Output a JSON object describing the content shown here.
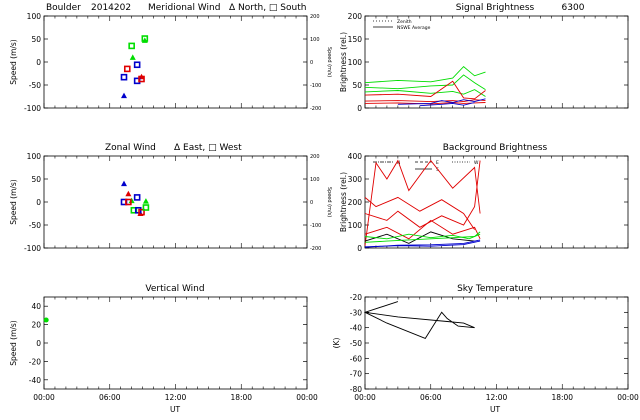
{
  "colors": {
    "red": "#e00000",
    "green": "#00dd00",
    "blue": "#0000cc",
    "black": "#000000"
  },
  "chart_data": [
    {
      "id": "meridional",
      "type": "scatter",
      "title_left": "Boulder",
      "title_code": "2014202",
      "title": "Meridional Wind",
      "title_legend": "Δ North, □ South",
      "ylabel": "Speed (m/s)",
      "ylabel_right": "Speed (m/s)",
      "xlim": [
        0,
        24
      ],
      "ylim": [
        -100,
        100
      ],
      "yticks": [
        -100,
        -50,
        0,
        50,
        100
      ],
      "yticks_right": [
        -200,
        -100,
        0,
        100,
        200
      ],
      "ylim_right": [
        -200,
        200
      ],
      "series": [
        {
          "name": "North",
          "marker": "triangle",
          "points": [
            {
              "x": 7.3,
              "y": -73,
              "color": "blue"
            },
            {
              "x": 8.1,
              "y": 10,
              "color": "green"
            },
            {
              "x": 8.9,
              "y": -32,
              "color": "red"
            },
            {
              "x": 9.2,
              "y": 47,
              "color": "green"
            }
          ]
        },
        {
          "name": "South",
          "marker": "square",
          "points": [
            {
              "x": 7.3,
              "y": -33,
              "color": "blue"
            },
            {
              "x": 7.6,
              "y": -15,
              "color": "red"
            },
            {
              "x": 8.0,
              "y": 35,
              "color": "green"
            },
            {
              "x": 8.5,
              "y": -6,
              "color": "blue"
            },
            {
              "x": 8.5,
              "y": -41,
              "color": "blue"
            },
            {
              "x": 8.9,
              "y": -37,
              "color": "red"
            },
            {
              "x": 9.2,
              "y": 51,
              "color": "green"
            }
          ]
        }
      ]
    },
    {
      "id": "zonal",
      "type": "scatter",
      "title": "Zonal Wind",
      "title_legend": "Δ East, □ West",
      "ylabel": "Speed (m/s)",
      "ylabel_right": "Speed (m/s)",
      "xlim": [
        0,
        24
      ],
      "ylim": [
        -100,
        100
      ],
      "yticks": [
        -100,
        -50,
        0,
        50,
        100
      ],
      "yticks_right": [
        -200,
        -100,
        0,
        100,
        200
      ],
      "ylim_right": [
        -200,
        200
      ],
      "series": [
        {
          "name": "East",
          "marker": "triangle",
          "points": [
            {
              "x": 7.3,
              "y": 40,
              "color": "blue"
            },
            {
              "x": 7.7,
              "y": 18,
              "color": "red"
            },
            {
              "x": 8.0,
              "y": 3,
              "color": "green"
            },
            {
              "x": 8.8,
              "y": -25,
              "color": "red"
            },
            {
              "x": 9.3,
              "y": 2,
              "color": "green"
            }
          ]
        },
        {
          "name": "West",
          "marker": "square",
          "points": [
            {
              "x": 7.3,
              "y": 0,
              "color": "blue"
            },
            {
              "x": 7.7,
              "y": 0,
              "color": "red"
            },
            {
              "x": 8.2,
              "y": -18,
              "color": "green"
            },
            {
              "x": 8.5,
              "y": 10,
              "color": "blue"
            },
            {
              "x": 8.6,
              "y": -18,
              "color": "blue"
            },
            {
              "x": 8.9,
              "y": -22,
              "color": "red"
            },
            {
              "x": 9.3,
              "y": -12,
              "color": "green"
            }
          ]
        }
      ]
    },
    {
      "id": "vertical",
      "type": "scatter",
      "title": "Vertical Wind",
      "ylabel": "Speed (m/s)",
      "xlabel": "UT",
      "xlim": [
        0,
        24
      ],
      "xticks": [
        "00:00",
        "06:00",
        "12:00",
        "18:00",
        "00:00"
      ],
      "ylim": [
        -50,
        50
      ],
      "yticks": [
        -40,
        -20,
        0,
        20,
        40
      ],
      "series": [
        {
          "name": "Zenith",
          "marker": "circle",
          "points": [
            {
              "x": 0.2,
              "y": 25,
              "color": "green"
            }
          ]
        }
      ]
    },
    {
      "id": "signal",
      "type": "line",
      "title": "Signal Brightness",
      "title_extra": "6300",
      "ylabel": "Brightness (rel.)",
      "xlim": [
        0,
        24
      ],
      "ylim": [
        0,
        200
      ],
      "yticks": [
        0,
        50,
        100,
        150,
        200
      ],
      "legend": [
        {
          "label": "Zenith",
          "style": "dotted"
        },
        {
          "label": "NSWE Average",
          "style": "solid"
        }
      ],
      "series": [
        {
          "color": "green",
          "points": [
            [
              0,
              55
            ],
            [
              3,
              60
            ],
            [
              6,
              57
            ],
            [
              8,
              65
            ],
            [
              9,
              90
            ],
            [
              10,
              70
            ],
            [
              11,
              78
            ]
          ]
        },
        {
          "color": "green",
          "points": [
            [
              0,
              45
            ],
            [
              3,
              42
            ],
            [
              6,
              48
            ],
            [
              8,
              50
            ],
            [
              9,
              72
            ],
            [
              10,
              55
            ],
            [
              11,
              40
            ]
          ]
        },
        {
          "color": "green",
          "points": [
            [
              0,
              35
            ],
            [
              3,
              38
            ],
            [
              6,
              32
            ],
            [
              8,
              36
            ],
            [
              9,
              30
            ],
            [
              10,
              40
            ],
            [
              11,
              25
            ]
          ]
        },
        {
          "color": "red",
          "points": [
            [
              0,
              28
            ],
            [
              3,
              30
            ],
            [
              6,
              25
            ],
            [
              8,
              58
            ],
            [
              9,
              22
            ],
            [
              10,
              20
            ],
            [
              11,
              38
            ]
          ]
        },
        {
          "color": "red",
          "points": [
            [
              0,
              15
            ],
            [
              3,
              16
            ],
            [
              6,
              14
            ],
            [
              8,
              16
            ],
            [
              9,
              14
            ],
            [
              10,
              18
            ],
            [
              11,
              16
            ]
          ]
        },
        {
          "color": "red",
          "points": [
            [
              0,
              10
            ],
            [
              3,
              11
            ],
            [
              6,
              9
            ],
            [
              8,
              12
            ],
            [
              9,
              10
            ],
            [
              10,
              11
            ],
            [
              11,
              12
            ]
          ]
        },
        {
          "color": "blue",
          "points": [
            [
              3,
              8
            ],
            [
              6,
              10
            ],
            [
              7,
              16
            ],
            [
              8,
              12
            ],
            [
              9,
              18
            ],
            [
              10,
              14
            ],
            [
              11,
              20
            ]
          ]
        },
        {
          "color": "blue",
          "points": [
            [
              5,
              5
            ],
            [
              7,
              8
            ],
            [
              8,
              10
            ],
            [
              9,
              6
            ],
            [
              10,
              12
            ]
          ]
        }
      ]
    },
    {
      "id": "background",
      "type": "line",
      "title": "Background Brightness",
      "ylabel": "Brightness (rel.)",
      "xlim": [
        0,
        24
      ],
      "ylim": [
        0,
        400
      ],
      "yticks": [
        0,
        100,
        200,
        300,
        400
      ],
      "legend_labels": [
        "N",
        "E",
        "W",
        "S"
      ],
      "series": [
        {
          "color": "red",
          "points": [
            [
              0,
              10
            ],
            [
              1,
              370
            ],
            [
              2,
              300
            ],
            [
              3,
              380
            ],
            [
              4,
              250
            ],
            [
              6,
              380
            ],
            [
              8,
              260
            ],
            [
              10,
              350
            ],
            [
              10.5,
              150
            ]
          ]
        },
        {
          "color": "red",
          "points": [
            [
              0,
              150
            ],
            [
              2,
              120
            ],
            [
              3,
              160
            ],
            [
              5,
              90
            ],
            [
              7,
              140
            ],
            [
              9,
              100
            ],
            [
              10,
              180
            ],
            [
              10.5,
              380
            ]
          ]
        },
        {
          "color": "red",
          "points": [
            [
              0,
              220
            ],
            [
              1,
              180
            ],
            [
              3,
              220
            ],
            [
              5,
              160
            ],
            [
              7,
              210
            ],
            [
              9,
              150
            ],
            [
              10,
              80
            ]
          ]
        },
        {
          "color": "red",
          "points": [
            [
              0,
              60
            ],
            [
              2,
              90
            ],
            [
              4,
              40
            ],
            [
              6,
              120
            ],
            [
              8,
              60
            ],
            [
              10,
              90
            ],
            [
              10.5,
              40
            ]
          ]
        },
        {
          "color": "black",
          "points": [
            [
              0,
              30
            ],
            [
              2,
              60
            ],
            [
              4,
              20
            ],
            [
              6,
              70
            ],
            [
              8,
              40
            ],
            [
              10,
              30
            ]
          ]
        },
        {
          "color": "green",
          "points": [
            [
              0,
              50
            ],
            [
              2,
              40
            ],
            [
              4,
              60
            ],
            [
              6,
              45
            ],
            [
              8,
              55
            ],
            [
              9.5,
              40
            ],
            [
              10.5,
              60
            ]
          ]
        },
        {
          "color": "green",
          "points": [
            [
              0,
              25
            ],
            [
              2,
              30
            ],
            [
              4,
              35
            ],
            [
              6,
              40
            ],
            [
              8,
              45
            ],
            [
              10,
              50
            ],
            [
              10.5,
              70
            ]
          ]
        },
        {
          "color": "blue",
          "points": [
            [
              0,
              5
            ],
            [
              3,
              10
            ],
            [
              6,
              8
            ],
            [
              9,
              15
            ],
            [
              10.5,
              30
            ]
          ]
        },
        {
          "color": "blue",
          "points": [
            [
              0,
              3
            ],
            [
              3,
              12
            ],
            [
              6,
              14
            ],
            [
              9,
              20
            ],
            [
              10.5,
              35
            ]
          ]
        }
      ]
    },
    {
      "id": "sky",
      "type": "line",
      "title": "Sky Temperature",
      "ylabel": "(K)",
      "xlabel": "UT",
      "xlim": [
        0,
        24
      ],
      "xticks": [
        "00:00",
        "06:00",
        "12:00",
        "18:00",
        "00:00"
      ],
      "ylim": [
        -80,
        -20
      ],
      "yticks": [
        -80,
        -70,
        -60,
        -50,
        -40,
        -30,
        -20
      ],
      "series": [
        {
          "color": "black",
          "points": [
            [
              3,
              -23
            ],
            [
              0,
              -30
            ],
            [
              2,
              -37
            ],
            [
              5.5,
              -47
            ],
            [
              7,
              -30
            ],
            [
              7.5,
              -34
            ],
            [
              8.5,
              -39
            ],
            [
              10,
              -40
            ],
            [
              9,
              -37
            ],
            [
              7.5,
              -36
            ],
            [
              3,
              -33
            ],
            [
              0,
              -30
            ]
          ]
        }
      ]
    }
  ]
}
